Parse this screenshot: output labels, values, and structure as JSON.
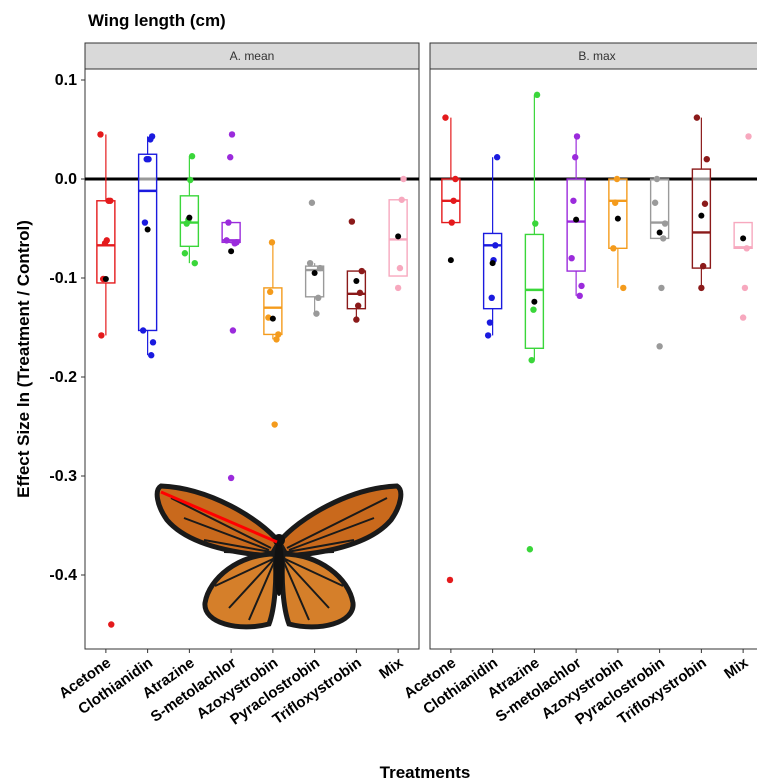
{
  "figure_title": "Wing length (cm)",
  "chart_data": {
    "type": "box",
    "title": "Wing length (cm)",
    "xlabel": "Treatments",
    "ylabel": "Effect Size ln (Treatment / Control)",
    "ylim": [
      -0.47,
      0.12
    ],
    "yticks": [
      0.1,
      0.0,
      -0.1,
      -0.2,
      -0.3,
      -0.4
    ],
    "ytick_labels": [
      "0.1",
      "0.0",
      "-0.1",
      "-0.2",
      "-0.3",
      "-0.4"
    ],
    "reference_line": 0.0,
    "grid": false,
    "categories": [
      "Acetone",
      "Clothianidin",
      "Atrazine",
      "S-metolachlor",
      "Azoxystrobin",
      "Pyraclostrobin",
      "Trifloxystrobin",
      "Mix"
    ],
    "category_colors": [
      "#e41a1c",
      "#1a1adf",
      "#3ad63a",
      "#9b2bdc",
      "#f49b1c",
      "#9a9a9a",
      "#8b1a1a",
      "#f7a8be"
    ],
    "mean_marker_color": "#000000",
    "panels": [
      {
        "label": "A. mean",
        "boxes": [
          {
            "category": "Acetone",
            "q1": -0.105,
            "median": -0.067,
            "q3": -0.022,
            "whisker_low": -0.158,
            "whisker_high": 0.045,
            "mean": -0.101,
            "points": [
              0.045,
              -0.022,
              -0.022,
              -0.062,
              -0.065,
              -0.101,
              -0.158,
              -0.45
            ]
          },
          {
            "category": "Clothianidin",
            "q1": -0.153,
            "median": -0.012,
            "q3": 0.025,
            "whisker_low": -0.178,
            "whisker_high": 0.043,
            "mean": -0.051,
            "points": [
              0.043,
              0.04,
              0.02,
              0.02,
              -0.044,
              -0.153,
              -0.165,
              -0.178
            ]
          },
          {
            "category": "Atrazine",
            "q1": -0.068,
            "median": -0.044,
            "q3": -0.017,
            "whisker_low": -0.085,
            "whisker_high": 0.023,
            "mean": -0.039,
            "points": [
              0.023,
              -0.001,
              -0.041,
              -0.045,
              -0.075,
              -0.085
            ]
          },
          {
            "category": "S-metolachlor",
            "q1": -0.064,
            "median": -0.062,
            "q3": -0.044,
            "whisker_low": -0.065,
            "whisker_high": -0.044,
            "mean": -0.073,
            "points": [
              0.045,
              0.022,
              -0.044,
              -0.062,
              -0.064,
              -0.065,
              -0.153,
              -0.302
            ]
          },
          {
            "category": "Azoxystrobin",
            "q1": -0.157,
            "median": -0.13,
            "q3": -0.11,
            "whisker_low": -0.162,
            "whisker_high": -0.064,
            "mean": -0.141,
            "points": [
              -0.064,
              -0.114,
              -0.14,
              -0.157,
              -0.162,
              -0.248
            ]
          },
          {
            "category": "Pyraclostrobin",
            "q1": -0.119,
            "median": -0.092,
            "q3": -0.088,
            "whisker_low": -0.136,
            "whisker_high": -0.085,
            "mean": -0.095,
            "points": [
              -0.024,
              -0.085,
              -0.09,
              -0.12,
              -0.136
            ]
          },
          {
            "category": "Trifloxystrobin",
            "q1": -0.131,
            "median": -0.116,
            "q3": -0.093,
            "whisker_low": -0.142,
            "whisker_high": -0.093,
            "mean": -0.103,
            "points": [
              -0.043,
              -0.093,
              -0.115,
              -0.128,
              -0.142
            ]
          },
          {
            "category": "Mix",
            "q1": -0.098,
            "median": -0.061,
            "q3": -0.021,
            "whisker_low": -0.098,
            "whisker_high": -0.021,
            "mean": -0.058,
            "points": [
              0.0,
              -0.021,
              -0.09,
              -0.11
            ]
          }
        ]
      },
      {
        "label": "B. max",
        "boxes": [
          {
            "category": "Acetone",
            "q1": -0.044,
            "median": -0.022,
            "q3": 0.0,
            "whisker_low": -0.044,
            "whisker_high": 0.062,
            "mean": -0.082,
            "points": [
              0.062,
              0.0,
              -0.022,
              -0.044,
              -0.405
            ]
          },
          {
            "category": "Clothianidin",
            "q1": -0.131,
            "median": -0.067,
            "q3": -0.055,
            "whisker_low": -0.158,
            "whisker_high": 0.022,
            "mean": -0.085,
            "points": [
              0.022,
              -0.067,
              -0.082,
              -0.12,
              -0.145,
              -0.158
            ]
          },
          {
            "category": "Atrazine",
            "q1": -0.171,
            "median": -0.112,
            "q3": -0.056,
            "whisker_low": -0.183,
            "whisker_high": 0.085,
            "mean": -0.124,
            "points": [
              0.085,
              -0.045,
              -0.132,
              -0.183,
              -0.374
            ]
          },
          {
            "category": "S-metolachlor",
            "q1": -0.093,
            "median": -0.043,
            "q3": 0.0,
            "whisker_low": -0.118,
            "whisker_high": 0.043,
            "mean": -0.041,
            "points": [
              0.043,
              0.022,
              -0.022,
              -0.08,
              -0.108,
              -0.118
            ]
          },
          {
            "category": "Azoxystrobin",
            "q1": -0.07,
            "median": -0.022,
            "q3": 0.0,
            "whisker_low": -0.11,
            "whisker_high": 0.0,
            "mean": -0.04,
            "points": [
              0.0,
              -0.024,
              -0.07,
              -0.11
            ]
          },
          {
            "category": "Pyraclostrobin",
            "q1": -0.06,
            "median": -0.044,
            "q3": 0.0,
            "whisker_low": -0.06,
            "whisker_high": 0.0,
            "mean": -0.054,
            "points": [
              0.0,
              -0.024,
              -0.045,
              -0.06,
              -0.11,
              -0.169
            ]
          },
          {
            "category": "Trifloxystrobin",
            "q1": -0.09,
            "median": -0.054,
            "q3": 0.01,
            "whisker_low": -0.11,
            "whisker_high": 0.062,
            "mean": -0.037,
            "points": [
              0.062,
              0.02,
              -0.025,
              -0.088,
              -0.11
            ]
          },
          {
            "category": "Mix",
            "q1": -0.07,
            "median": -0.069,
            "q3": -0.044,
            "whisker_low": -0.07,
            "whisker_high": -0.044,
            "mean": -0.06,
            "points": [
              0.043,
              -0.07,
              -0.11,
              -0.14
            ]
          }
        ]
      }
    ]
  }
}
